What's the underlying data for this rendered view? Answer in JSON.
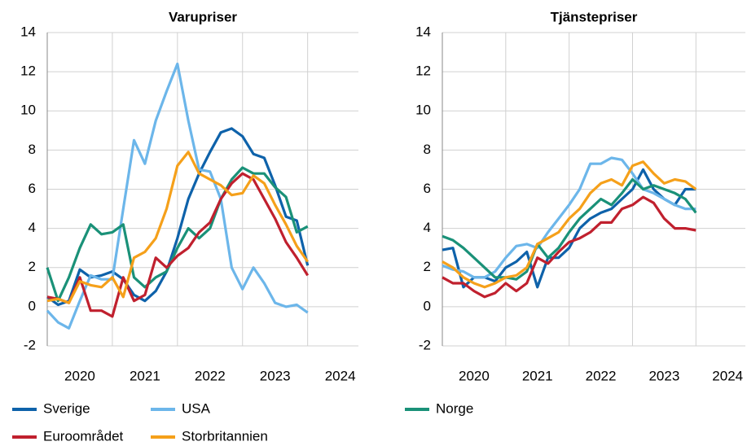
{
  "chart_data": [
    {
      "type": "line",
      "title": "Varupriser",
      "x": [
        2020,
        2020.167,
        2020.333,
        2020.5,
        2020.667,
        2020.833,
        2021,
        2021.167,
        2021.333,
        2021.5,
        2021.667,
        2021.833,
        2022,
        2022.167,
        2022.333,
        2022.5,
        2022.667,
        2022.833,
        2023,
        2023.167,
        2023.333,
        2023.5,
        2023.667,
        2023.833,
        2024
      ],
      "xlim": [
        2020,
        2024.78
      ],
      "xticks": [
        {
          "value": 2020.5,
          "label": "2020"
        },
        {
          "value": 2021.5,
          "label": "2021"
        },
        {
          "value": 2022.5,
          "label": "2022"
        },
        {
          "value": 2023.5,
          "label": "2023"
        },
        {
          "value": 2024.5,
          "label": "2024"
        }
      ],
      "xgrid": [
        2021,
        2022,
        2023,
        2024
      ],
      "ylim": [
        -2,
        14
      ],
      "yticks": [
        -2,
        0,
        2,
        4,
        6,
        8,
        10,
        12,
        14
      ],
      "grid": true,
      "series": [
        {
          "name": "Sverige",
          "color": "#0e62aa",
          "values": [
            0.5,
            0.1,
            0.3,
            1.9,
            1.5,
            1.6,
            1.8,
            1.4,
            0.6,
            0.3,
            0.8,
            1.8,
            3.5,
            5.5,
            6.8,
            7.9,
            8.9,
            9.1,
            8.7,
            7.8,
            7.6,
            6.2,
            4.6,
            4.4,
            2.1
          ]
        },
        {
          "name": "USA",
          "color": "#6cb6ea",
          "values": [
            -0.2,
            -0.8,
            -1.1,
            0.3,
            1.6,
            1.4,
            1.4,
            5,
            8.5,
            7.3,
            9.5,
            11,
            12.4,
            9.5,
            7,
            6.9,
            5.5,
            2,
            0.9,
            2,
            1.2,
            0.2,
            0,
            0.1,
            -0.3
          ]
        },
        {
          "name": "Norge",
          "color": "#1a9178",
          "values": [
            2,
            0.3,
            1.5,
            3,
            4.2,
            3.7,
            3.8,
            4.2,
            1.5,
            1,
            1.5,
            1.8,
            3,
            4,
            3.5,
            4,
            5.5,
            6.5,
            7.1,
            6.8,
            6.8,
            6.1,
            5.6,
            3.8,
            4.1
          ]
        },
        {
          "name": "Euroområdet",
          "color": "#c0202e",
          "values": [
            0.5,
            0.4,
            0.2,
            1.5,
            -0.2,
            -0.2,
            -0.5,
            1.5,
            0.3,
            0.6,
            2.5,
            2,
            2.6,
            3,
            3.8,
            4.3,
            5.5,
            6.3,
            6.8,
            6.5,
            5.5,
            4.5,
            3.3,
            2.5,
            1.6
          ]
        },
        {
          "name": "Storbritannien",
          "color": "#f5a01a",
          "values": [
            0.3,
            0.4,
            0.2,
            1.3,
            1.1,
            1,
            1.5,
            0.5,
            2.5,
            2.8,
            3.5,
            5,
            7.2,
            7.9,
            6.8,
            6.5,
            6.2,
            5.7,
            5.8,
            6.7,
            6.3,
            5.2,
            4.2,
            3.1,
            2.3
          ]
        }
      ]
    },
    {
      "type": "line",
      "title": "Tjänstepriser",
      "x": [
        2020,
        2020.167,
        2020.333,
        2020.5,
        2020.667,
        2020.833,
        2021,
        2021.167,
        2021.333,
        2021.5,
        2021.667,
        2021.833,
        2022,
        2022.167,
        2022.333,
        2022.5,
        2022.667,
        2022.833,
        2023,
        2023.167,
        2023.333,
        2023.5,
        2023.667,
        2023.833,
        2024
      ],
      "xlim": [
        2020,
        2024.78
      ],
      "xticks": [
        {
          "value": 2020.5,
          "label": "2020"
        },
        {
          "value": 2021.5,
          "label": "2021"
        },
        {
          "value": 2022.5,
          "label": "2022"
        },
        {
          "value": 2023.5,
          "label": "2023"
        },
        {
          "value": 2024.5,
          "label": "2024"
        }
      ],
      "xgrid": [
        2021,
        2022,
        2023,
        2024
      ],
      "ylim": [
        -2,
        14
      ],
      "yticks": [
        -2,
        0,
        2,
        4,
        6,
        8,
        10,
        12,
        14
      ],
      "grid": true,
      "series": [
        {
          "name": "Sverige",
          "color": "#0e62aa",
          "values": [
            2.9,
            3,
            1,
            1.5,
            1.5,
            1.3,
            2,
            2.3,
            2.8,
            1,
            2.5,
            2.5,
            3,
            4,
            4.5,
            4.8,
            5,
            5.5,
            6,
            7,
            6,
            5.5,
            5.2,
            6,
            6
          ]
        },
        {
          "name": "USA",
          "color": "#6cb6ea",
          "values": [
            2.1,
            1.9,
            1.8,
            1.5,
            1.5,
            1.8,
            2.5,
            3.1,
            3.2,
            3,
            3.8,
            4.5,
            5.2,
            6,
            7.3,
            7.3,
            7.6,
            7.5,
            6.8,
            6,
            5.8,
            5.5,
            5.2,
            5,
            5
          ]
        },
        {
          "name": "Norge",
          "color": "#1a9178",
          "values": [
            3.6,
            3.4,
            3,
            2.5,
            2,
            1.5,
            1.5,
            1.4,
            1.8,
            3.2,
            2.5,
            3,
            3.8,
            4.5,
            5,
            5.5,
            5.2,
            5.8,
            6.5,
            6,
            6.2,
            6,
            5.8,
            5.5,
            4.8
          ]
        },
        {
          "name": "Euroområdet",
          "color": "#c0202e",
          "values": [
            1.5,
            1.2,
            1.2,
            0.8,
            0.5,
            0.7,
            1.2,
            0.8,
            1.2,
            2.5,
            2.2,
            2.8,
            3.3,
            3.5,
            3.8,
            4.3,
            4.3,
            5,
            5.2,
            5.6,
            5.3,
            4.5,
            4,
            4,
            3.9
          ]
        },
        {
          "name": "Storbritannien",
          "color": "#f5a01a",
          "values": [
            2.3,
            2,
            1.5,
            1.2,
            1,
            1.2,
            1.5,
            1.6,
            2,
            3.2,
            3.5,
            3.8,
            4.5,
            5,
            5.8,
            6.3,
            6.5,
            6.2,
            7.2,
            7.4,
            6.8,
            6.3,
            6.5,
            6.4,
            6
          ]
        }
      ]
    }
  ]
}
